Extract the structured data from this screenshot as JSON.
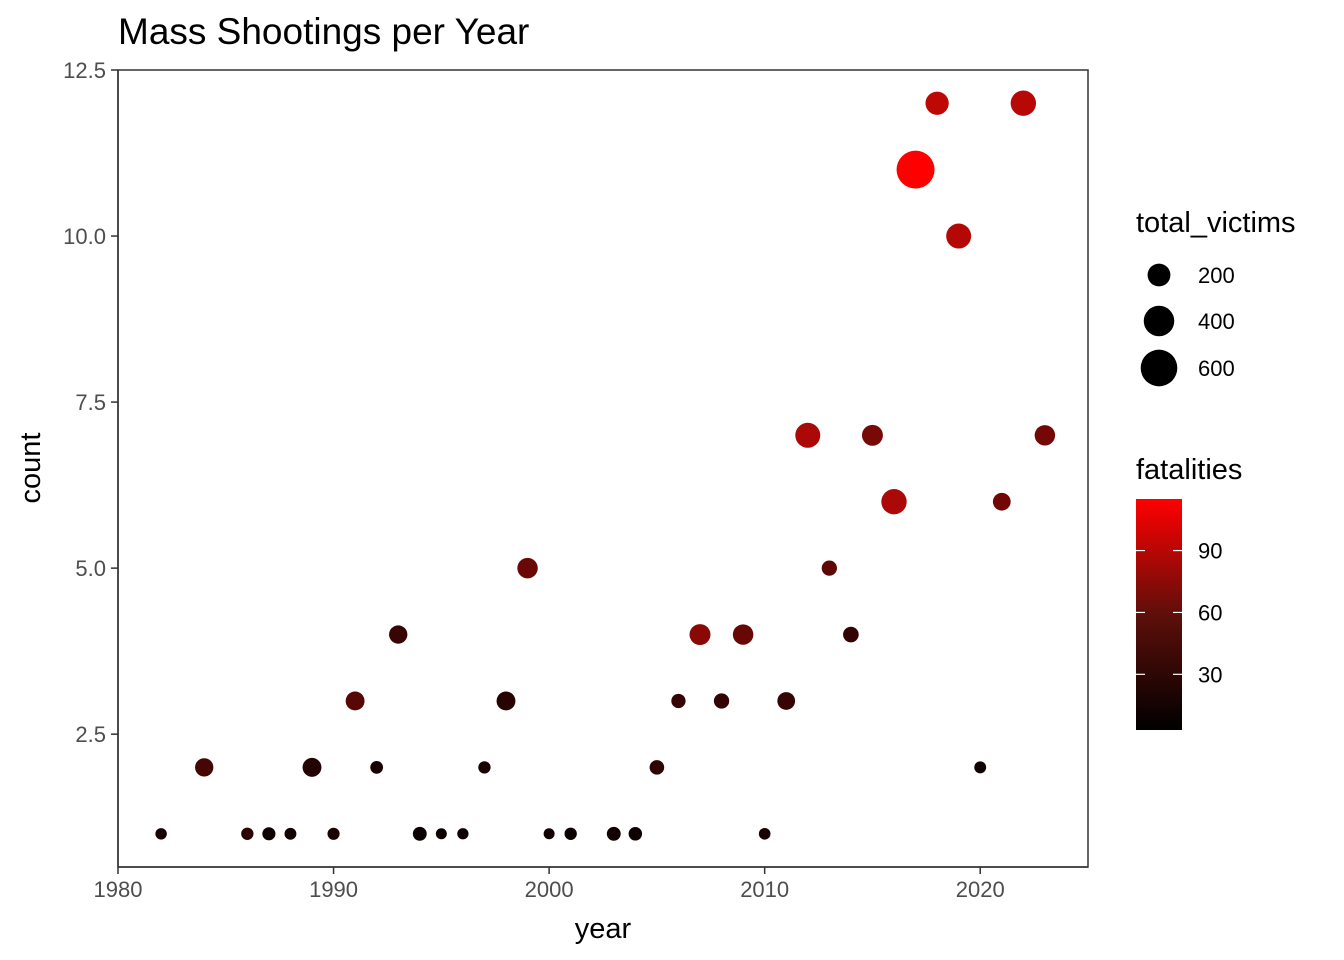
{
  "chart_data": {
    "type": "scatter",
    "title": "Mass Shootings per Year",
    "xlabel": "year",
    "ylabel": "count",
    "xlim": [
      1980,
      2025
    ],
    "ylim": [
      0.5,
      12.5
    ],
    "x_ticks": [
      1980,
      1990,
      2000,
      2010,
      2020
    ],
    "x_tick_labels": [
      "1980",
      "1990",
      "2000",
      "2010",
      "2020"
    ],
    "y_ticks": [
      2.5,
      5.0,
      7.5,
      10.0,
      12.5
    ],
    "y_tick_labels": [
      "2.5",
      "5.0",
      "7.5",
      "10.0",
      "12.5"
    ],
    "grid": false,
    "size_legend": {
      "title": "total_victims",
      "entries": [
        {
          "label": "200",
          "value": 200
        },
        {
          "label": "400",
          "value": 400
        },
        {
          "label": "600",
          "value": 600
        }
      ]
    },
    "color_legend": {
      "title": "fatalities",
      "range": [
        3,
        115
      ],
      "ticks": [
        {
          "label": "30",
          "value": 30
        },
        {
          "label": "60",
          "value": 60
        },
        {
          "label": "90",
          "value": 90
        }
      ],
      "low_color": "#000000",
      "high_color": "#ff0000"
    },
    "points": [
      {
        "year": 1982,
        "count": 1,
        "total_victims": 10,
        "fatalities": 8
      },
      {
        "year": 1984,
        "count": 2,
        "total_victims": 110,
        "fatalities": 25
      },
      {
        "year": 1986,
        "count": 1,
        "total_victims": 20,
        "fatalities": 15
      },
      {
        "year": 1987,
        "count": 1,
        "total_victims": 30,
        "fatalities": 6
      },
      {
        "year": 1988,
        "count": 1,
        "total_victims": 15,
        "fatalities": 7
      },
      {
        "year": 1989,
        "count": 2,
        "total_victims": 120,
        "fatalities": 12
      },
      {
        "year": 1990,
        "count": 1,
        "total_victims": 18,
        "fatalities": 10
      },
      {
        "year": 1991,
        "count": 3,
        "total_victims": 120,
        "fatalities": 32
      },
      {
        "year": 1992,
        "count": 2,
        "total_victims": 25,
        "fatalities": 9
      },
      {
        "year": 1993,
        "count": 4,
        "total_victims": 110,
        "fatalities": 20
      },
      {
        "year": 1994,
        "count": 1,
        "total_victims": 40,
        "fatalities": 5
      },
      {
        "year": 1995,
        "count": 1,
        "total_victims": 5,
        "fatalities": 6
      },
      {
        "year": 1996,
        "count": 1,
        "total_victims": 8,
        "fatalities": 6
      },
      {
        "year": 1997,
        "count": 2,
        "total_victims": 20,
        "fatalities": 9
      },
      {
        "year": 1998,
        "count": 3,
        "total_victims": 120,
        "fatalities": 14
      },
      {
        "year": 1999,
        "count": 5,
        "total_victims": 150,
        "fatalities": 40
      },
      {
        "year": 2000,
        "count": 1,
        "total_victims": 5,
        "fatalities": 7
      },
      {
        "year": 2001,
        "count": 1,
        "total_victims": 20,
        "fatalities": 5
      },
      {
        "year": 2003,
        "count": 1,
        "total_victims": 40,
        "fatalities": 7
      },
      {
        "year": 2004,
        "count": 1,
        "total_victims": 35,
        "fatalities": 6
      },
      {
        "year": 2005,
        "count": 2,
        "total_victims": 50,
        "fatalities": 17
      },
      {
        "year": 2006,
        "count": 3,
        "total_victims": 45,
        "fatalities": 18
      },
      {
        "year": 2007,
        "count": 4,
        "total_victims": 160,
        "fatalities": 55
      },
      {
        "year": 2008,
        "count": 3,
        "total_victims": 60,
        "fatalities": 18
      },
      {
        "year": 2009,
        "count": 4,
        "total_victims": 150,
        "fatalities": 39
      },
      {
        "year": 2010,
        "count": 1,
        "total_victims": 12,
        "fatalities": 9
      },
      {
        "year": 2011,
        "count": 3,
        "total_victims": 100,
        "fatalities": 19
      },
      {
        "year": 2012,
        "count": 7,
        "total_victims": 250,
        "fatalities": 71
      },
      {
        "year": 2013,
        "count": 5,
        "total_victims": 60,
        "fatalities": 35
      },
      {
        "year": 2014,
        "count": 4,
        "total_victims": 65,
        "fatalities": 18
      },
      {
        "year": 2015,
        "count": 7,
        "total_victims": 160,
        "fatalities": 46
      },
      {
        "year": 2016,
        "count": 6,
        "total_victims": 260,
        "fatalities": 71
      },
      {
        "year": 2017,
        "count": 11,
        "total_victims": 650,
        "fatalities": 117
      },
      {
        "year": 2018,
        "count": 12,
        "total_victims": 210,
        "fatalities": 80
      },
      {
        "year": 2019,
        "count": 10,
        "total_victims": 250,
        "fatalities": 75
      },
      {
        "year": 2020,
        "count": 2,
        "total_victims": 15,
        "fatalities": 6
      },
      {
        "year": 2021,
        "count": 6,
        "total_victims": 100,
        "fatalities": 44
      },
      {
        "year": 2022,
        "count": 12,
        "total_victims": 260,
        "fatalities": 77
      },
      {
        "year": 2023,
        "count": 7,
        "total_victims": 150,
        "fatalities": 45
      }
    ]
  }
}
